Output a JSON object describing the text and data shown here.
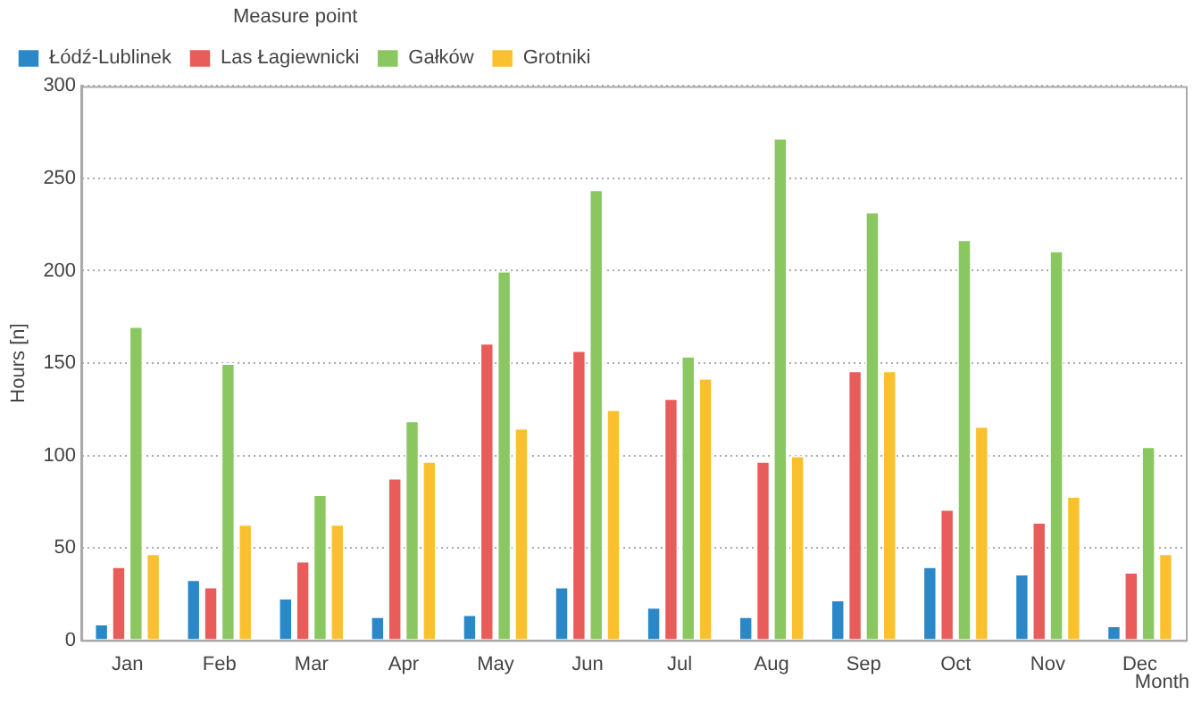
{
  "chart_data": {
    "type": "bar",
    "xlabel": "Month",
    "ylabel": "Hours [n]",
    "legend_title": "Measure point",
    "legend": "top left",
    "grid": "y",
    "categories": [
      "Jan",
      "Feb",
      "Mar",
      "Apr",
      "May",
      "Jun",
      "Jul",
      "Aug",
      "Sep",
      "Oct",
      "Nov",
      "Dec"
    ],
    "series": [
      {
        "name": "Łódź-Lublinek",
        "color": "#2a88c8",
        "values": [
          9,
          33,
          23,
          13,
          14,
          29,
          18,
          13,
          22,
          40,
          36,
          8
        ]
      },
      {
        "name": "Las Łagiewnicki",
        "color": "#e85c5a",
        "values": [
          40,
          29,
          43,
          88,
          161,
          157,
          131,
          97,
          146,
          71,
          64,
          37
        ]
      },
      {
        "name": "Gałków",
        "color": "#8bc760",
        "values": [
          170,
          150,
          79,
          119,
          200,
          244,
          154,
          272,
          232,
          217,
          211,
          105
        ]
      },
      {
        "name": "Grotniki",
        "color": "#fbc02d",
        "values": [
          47,
          63,
          63,
          97,
          115,
          125,
          142,
          100,
          146,
          116,
          78,
          47
        ]
      }
    ],
    "ylim": [
      0,
      300
    ],
    "yticks": [
      0,
      50,
      100,
      150,
      200,
      250,
      300
    ]
  }
}
